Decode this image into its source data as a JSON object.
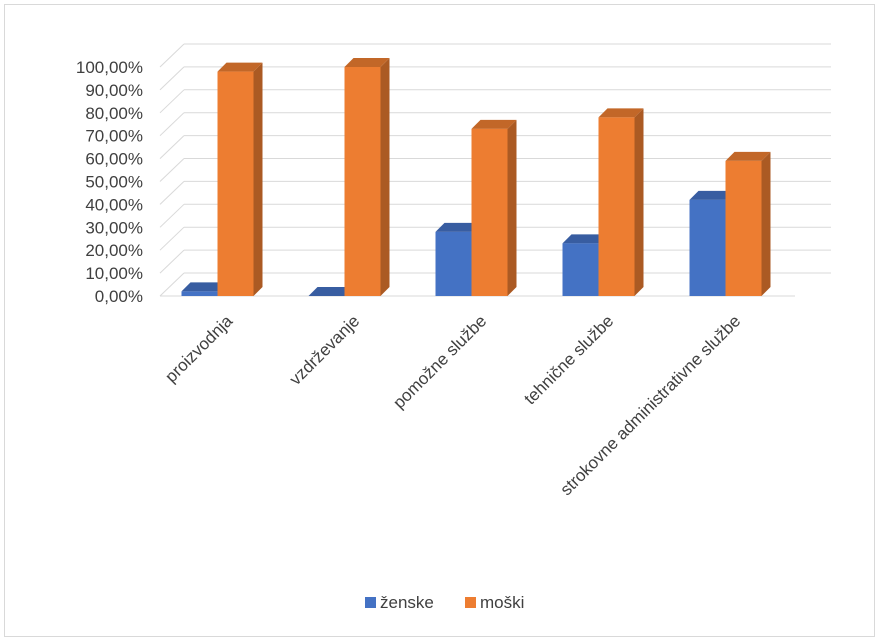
{
  "chart_data": {
    "type": "bar",
    "title": "",
    "xlabel": "",
    "ylabel": "",
    "ylim": [
      0,
      1.0
    ],
    "yticks": [
      "0,00%",
      "10,00%",
      "20,00%",
      "30,00%",
      "40,00%",
      "50,00%",
      "60,00%",
      "70,00%",
      "80,00%",
      "90,00%",
      "100,00%"
    ],
    "categories": [
      "proizvodnja",
      "vzdrževanje",
      "pomožne službe",
      "tehnične službe",
      "strokovne administrativne službe"
    ],
    "series": [
      {
        "name": "ženske",
        "color": "#4472c4",
        "values": [
          0.02,
          0.0,
          0.28,
          0.23,
          0.42
        ]
      },
      {
        "name": "moški",
        "color": "#ed7d31",
        "values": [
          0.98,
          1.0,
          0.73,
          0.78,
          0.59
        ]
      }
    ],
    "grid": true,
    "legend_position": "bottom"
  }
}
